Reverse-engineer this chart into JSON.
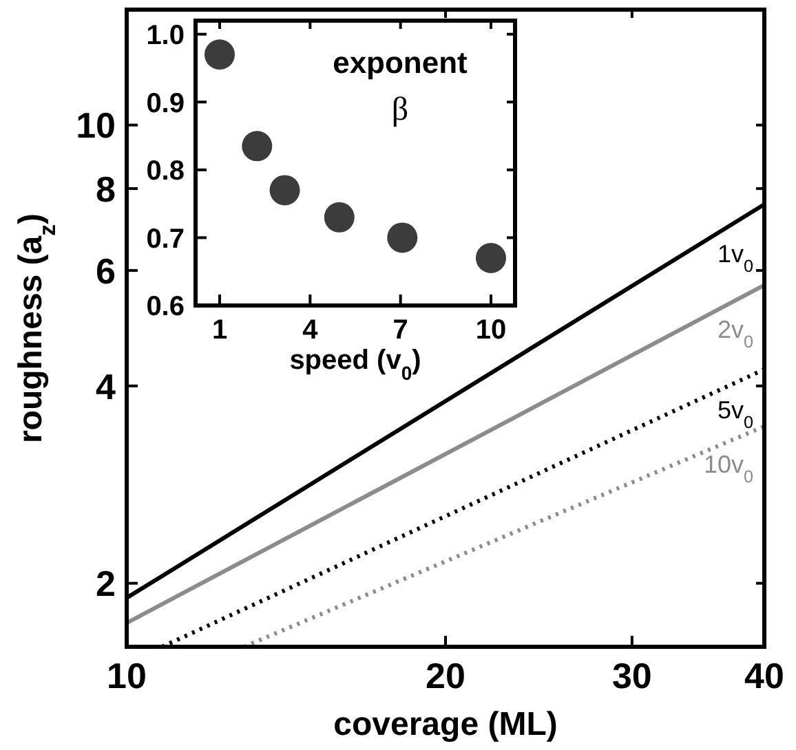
{
  "chart_data": [
    {
      "type": "line",
      "xlabel": "coverage (ML)",
      "ylabel": "roughness (a$_{z}$)",
      "log": "xy",
      "xlim": [
        10,
        40
      ],
      "ylim": [
        1.6,
        15
      ],
      "xticks": [
        10,
        20,
        30,
        40
      ],
      "yticks": [
        2,
        4,
        6,
        8,
        10
      ],
      "grid": false,
      "series": [
        {
          "name": "1v$_{0}$",
          "color": "#000000",
          "line_style": "solid",
          "x": [
            10,
            40
          ],
          "values": [
            1.9,
            7.57
          ]
        },
        {
          "name": "2v$_{0}$",
          "color": "#8c8c8c",
          "line_style": "solid",
          "x": [
            10,
            40
          ],
          "values": [
            1.74,
            5.7
          ]
        },
        {
          "name": "5v$_{0}$",
          "color": "#000000",
          "line_style": "dotted",
          "x": [
            10.8,
            40
          ],
          "values": [
            1.6,
            4.24
          ]
        },
        {
          "name": "10v$_{0}$",
          "color": "#8c8c8c",
          "line_style": "dotted",
          "x": [
            12.9,
            40
          ],
          "values": [
            1.6,
            3.47
          ]
        }
      ]
    },
    {
      "type": "scatter",
      "xlabel": "speed (v$_{0}$)",
      "xlim": [
        0.2,
        10.8
      ],
      "ylim": [
        0.6,
        1.02
      ],
      "xticks": [
        1,
        4,
        7,
        10
      ],
      "yticks": [
        0.6,
        0.7,
        0.8,
        0.9,
        {
          "value": 1,
          "label": "1.0"
        }
      ],
      "grid": false,
      "marker": "circle",
      "annotations": [
        "exponent",
        "β"
      ],
      "series": [
        {
          "color": "#3c3c3c",
          "x": [
            1,
            2.24,
            3.16,
            4.97,
            7.06,
            10
          ],
          "values": [
            0.97,
            0.835,
            0.77,
            0.73,
            0.7,
            0.67
          ]
        }
      ]
    }
  ]
}
